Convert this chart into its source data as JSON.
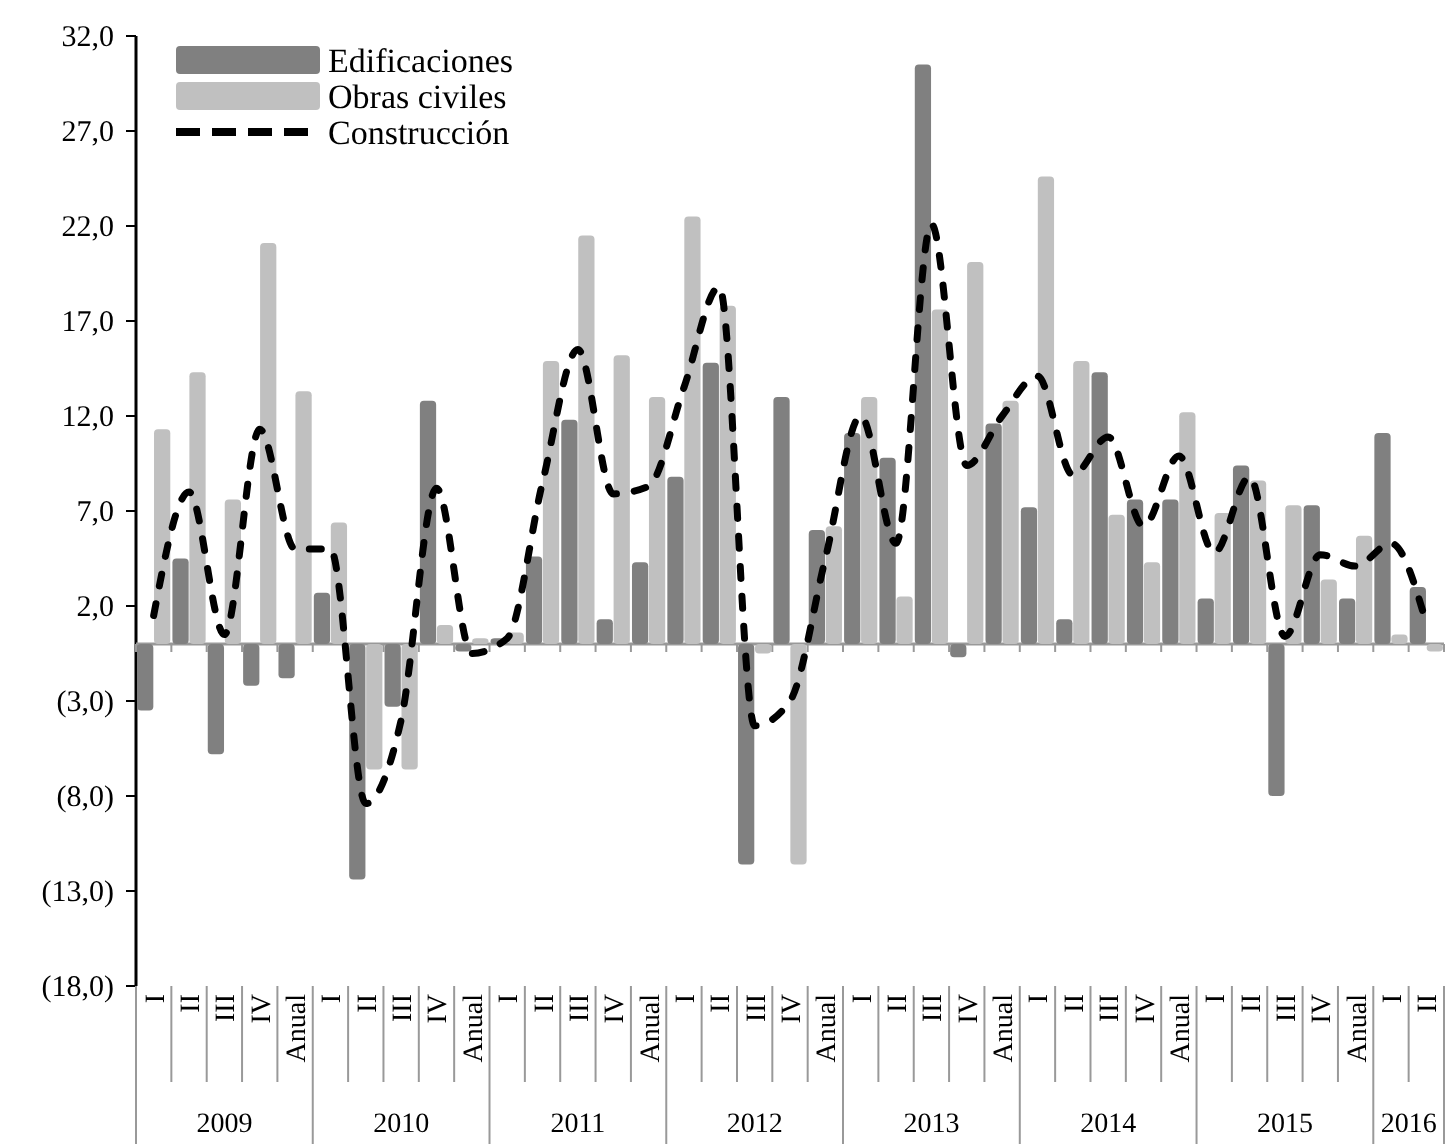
{
  "chart_data": {
    "type": "bar",
    "categories": [
      "I",
      "II",
      "III",
      "IV",
      "Anual",
      "I",
      "II",
      "III",
      "IV",
      "Anual",
      "I",
      "II",
      "III",
      "IV",
      "Anual",
      "I",
      "II",
      "III",
      "IV",
      "Anual",
      "I",
      "II",
      "III",
      "IV",
      "Anual",
      "I",
      "II",
      "III",
      "IV",
      "Anual",
      "I",
      "II",
      "III",
      "IV",
      "Anual",
      "I",
      "II"
    ],
    "series": [
      {
        "name": "Edificaciones",
        "color": "#808080",
        "values": [
          -3.5,
          4.5,
          -5.8,
          -2.2,
          -1.8,
          2.7,
          -12.4,
          -3.3,
          12.8,
          -0.4,
          0.3,
          4.6,
          11.8,
          1.3,
          4.3,
          8.8,
          14.8,
          -11.6,
          13.0,
          6.0,
          11.1,
          9.8,
          30.5,
          -0.7,
          11.6,
          7.2,
          1.3,
          14.3,
          7.6,
          7.6,
          2.4,
          9.4,
          -8.0,
          7.3,
          2.4,
          11.1,
          3.0
        ]
      },
      {
        "name": "Obras civiles",
        "color": "#c0c0c0",
        "values": [
          11.3,
          14.3,
          7.6,
          21.1,
          13.3,
          6.4,
          -6.6,
          -6.6,
          1.0,
          0.3,
          0.6,
          14.9,
          21.5,
          15.2,
          13.0,
          22.5,
          17.8,
          -0.5,
          -11.6,
          6.2,
          13.0,
          2.5,
          17.6,
          20.1,
          12.8,
          24.6,
          14.9,
          6.8,
          4.3,
          12.2,
          6.9,
          8.6,
          7.3,
          3.4,
          5.7,
          0.5,
          -0.4
        ]
      },
      {
        "name": "Construcción",
        "type": "line",
        "color": "#000000",
        "line_style": "dashed",
        "values": [
          1.5,
          8.0,
          0.5,
          11.3,
          5.0,
          5.0,
          -8.4,
          -4.0,
          8.2,
          -0.5,
          0.3,
          8.5,
          15.5,
          7.9,
          8.3,
          13.5,
          18.8,
          -4.3,
          -3.0,
          4.5,
          12.0,
          5.3,
          22.1,
          9.4,
          12.0,
          14.1,
          8.9,
          10.9,
          6.2,
          9.9,
          4.8,
          8.8,
          0.4,
          4.7,
          4.1,
          5.3,
          1.1
        ]
      }
    ],
    "ylim": [
      -18,
      32
    ],
    "yticks": [
      {
        "value": -18,
        "label": "(18,0)"
      },
      {
        "value": -13,
        "label": "(13,0)"
      },
      {
        "value": -8,
        "label": "(8,0)"
      },
      {
        "value": -3,
        "label": "(3,0)"
      },
      {
        "value": 2,
        "label": "2,0"
      },
      {
        "value": 7,
        "label": "7,0"
      },
      {
        "value": 12,
        "label": "12,0"
      },
      {
        "value": 17,
        "label": "17,0"
      },
      {
        "value": 22,
        "label": "22,0"
      },
      {
        "value": 27,
        "label": "27,0"
      },
      {
        "value": 32,
        "label": "32,0"
      }
    ],
    "annotations": [
      "2009",
      "2010",
      "2011",
      "2012",
      "2013",
      "2014",
      "2015",
      "2016"
    ],
    "legend": "top left",
    "grid": false
  }
}
